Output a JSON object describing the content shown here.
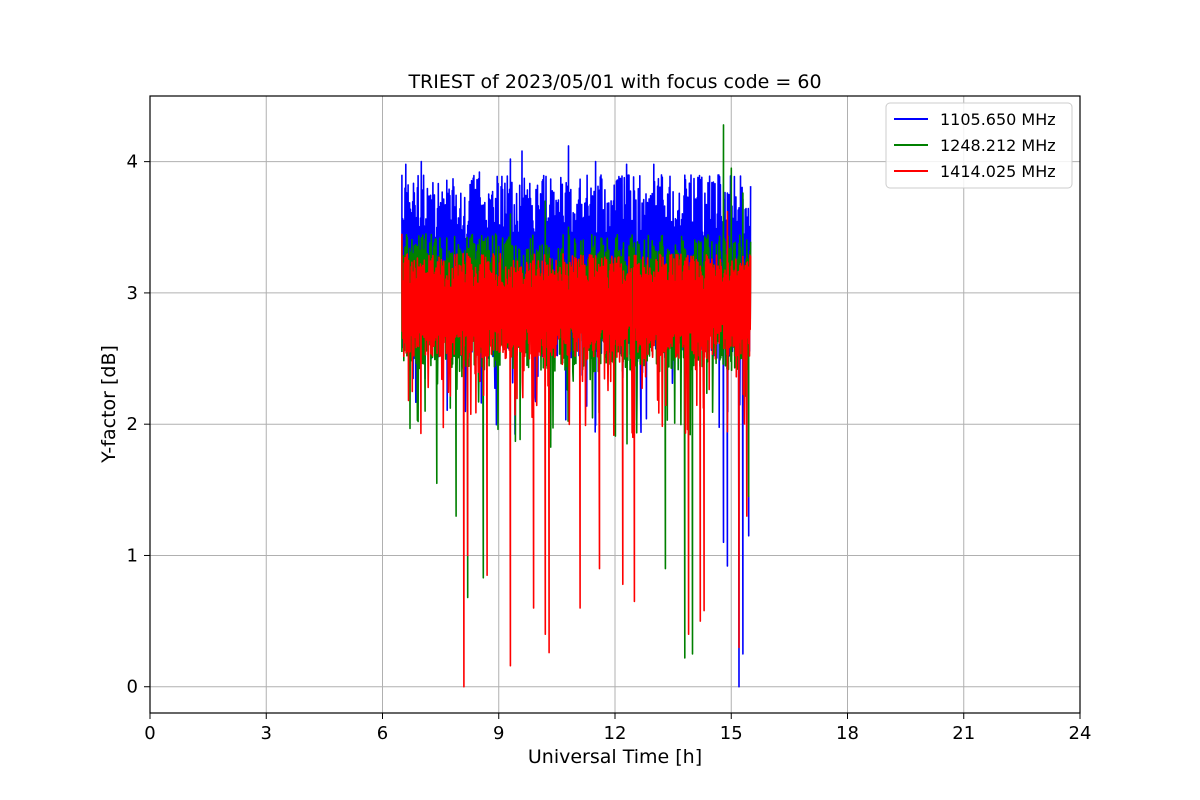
{
  "chart_data": {
    "type": "line",
    "title": "TRIEST of 2023/05/01 with focus code = 60",
    "xlabel": "Universal Time [h]",
    "ylabel": "Y-factor [dB]",
    "xlim": [
      0,
      24
    ],
    "ylim": [
      -0.2,
      4.5
    ],
    "xticks": [
      0,
      3,
      6,
      9,
      12,
      15,
      18,
      21,
      24
    ],
    "yticks": [
      0,
      1,
      2,
      3,
      4
    ],
    "grid": true,
    "legend_position": "top-right",
    "series": [
      {
        "name": "1105.650 MHz",
        "color": "#0000ff",
        "x_range": [
          6.5,
          15.5
        ],
        "band_low": 2.5,
        "band_high": 3.9,
        "points": [
          [
            6.5,
            3.9
          ],
          [
            6.6,
            3.98
          ],
          [
            7.0,
            4.0
          ],
          [
            8.5,
            3.92
          ],
          [
            9.3,
            4.02
          ],
          [
            9.6,
            4.08
          ],
          [
            10.8,
            4.12
          ],
          [
            11.5,
            4.0
          ],
          [
            12.3,
            3.98
          ],
          [
            13.0,
            3.98
          ],
          [
            14.5,
            3.84
          ],
          [
            14.8,
            1.1
          ],
          [
            14.9,
            0.92
          ],
          [
            15.2,
            0.0
          ],
          [
            15.3,
            0.25
          ],
          [
            15.45,
            1.15
          ]
        ]
      },
      {
        "name": "1248.212 MHz",
        "color": "#008000",
        "x_range": [
          6.5,
          15.5
        ],
        "band_low": 2.4,
        "band_high": 3.45,
        "points": [
          [
            6.5,
            2.55
          ],
          [
            6.9,
            2.03
          ],
          [
            7.1,
            2.1
          ],
          [
            7.4,
            1.55
          ],
          [
            7.9,
            1.3
          ],
          [
            8.2,
            0.68
          ],
          [
            8.6,
            0.83
          ],
          [
            9.3,
            3.6
          ],
          [
            10.2,
            3.7
          ],
          [
            10.8,
            3.5
          ],
          [
            13.3,
            0.9
          ],
          [
            13.8,
            0.22
          ],
          [
            14.0,
            0.25
          ],
          [
            14.8,
            4.28
          ],
          [
            15.0,
            3.95
          ],
          [
            15.3,
            3.76
          ],
          [
            15.45,
            1.45
          ]
        ]
      },
      {
        "name": "1414.025 MHz",
        "color": "#ff0000",
        "x_range": [
          6.5,
          15.5
        ],
        "band_low": 2.5,
        "band_high": 3.3,
        "points": [
          [
            6.5,
            3.45
          ],
          [
            8.1,
            0.0
          ],
          [
            8.2,
            1.0
          ],
          [
            8.7,
            0.85
          ],
          [
            9.3,
            0.16
          ],
          [
            9.9,
            0.6
          ],
          [
            10.2,
            0.4
          ],
          [
            10.3,
            0.26
          ],
          [
            11.1,
            0.6
          ],
          [
            11.6,
            0.9
          ],
          [
            12.2,
            0.78
          ],
          [
            12.5,
            0.65
          ],
          [
            13.9,
            0.4
          ],
          [
            14.2,
            0.5
          ],
          [
            14.3,
            0.58
          ],
          [
            14.9,
            3.62
          ],
          [
            15.2,
            0.3
          ],
          [
            15.4,
            1.3
          ]
        ]
      }
    ]
  }
}
